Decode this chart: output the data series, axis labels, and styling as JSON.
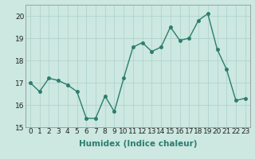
{
  "xlabel": "Humidex (Indice chaleur)",
  "ylabel": "",
  "x": [
    0,
    1,
    2,
    3,
    4,
    5,
    6,
    7,
    8,
    9,
    10,
    11,
    12,
    13,
    14,
    15,
    16,
    17,
    18,
    19,
    20,
    21,
    22,
    23
  ],
  "y": [
    17.0,
    16.6,
    17.2,
    17.1,
    16.9,
    16.6,
    15.4,
    15.4,
    16.4,
    15.7,
    17.2,
    18.6,
    18.8,
    18.4,
    18.6,
    19.5,
    18.9,
    19.0,
    19.8,
    20.1,
    18.5,
    17.6,
    16.2,
    16.3
  ],
  "line_color": "#2d7d6e",
  "marker": "o",
  "marker_size": 2.5,
  "line_width": 1.0,
  "ylim": [
    15.0,
    20.5
  ],
  "yticks": [
    15,
    16,
    17,
    18,
    19,
    20
  ],
  "xticks": [
    0,
    1,
    2,
    3,
    4,
    5,
    6,
    7,
    8,
    9,
    10,
    11,
    12,
    13,
    14,
    15,
    16,
    17,
    18,
    19,
    20,
    21,
    22,
    23
  ],
  "bg_color": "#cce8e0",
  "grid_color": "#aad0c8",
  "tick_fontsize": 6.5,
  "label_fontsize": 7.5
}
